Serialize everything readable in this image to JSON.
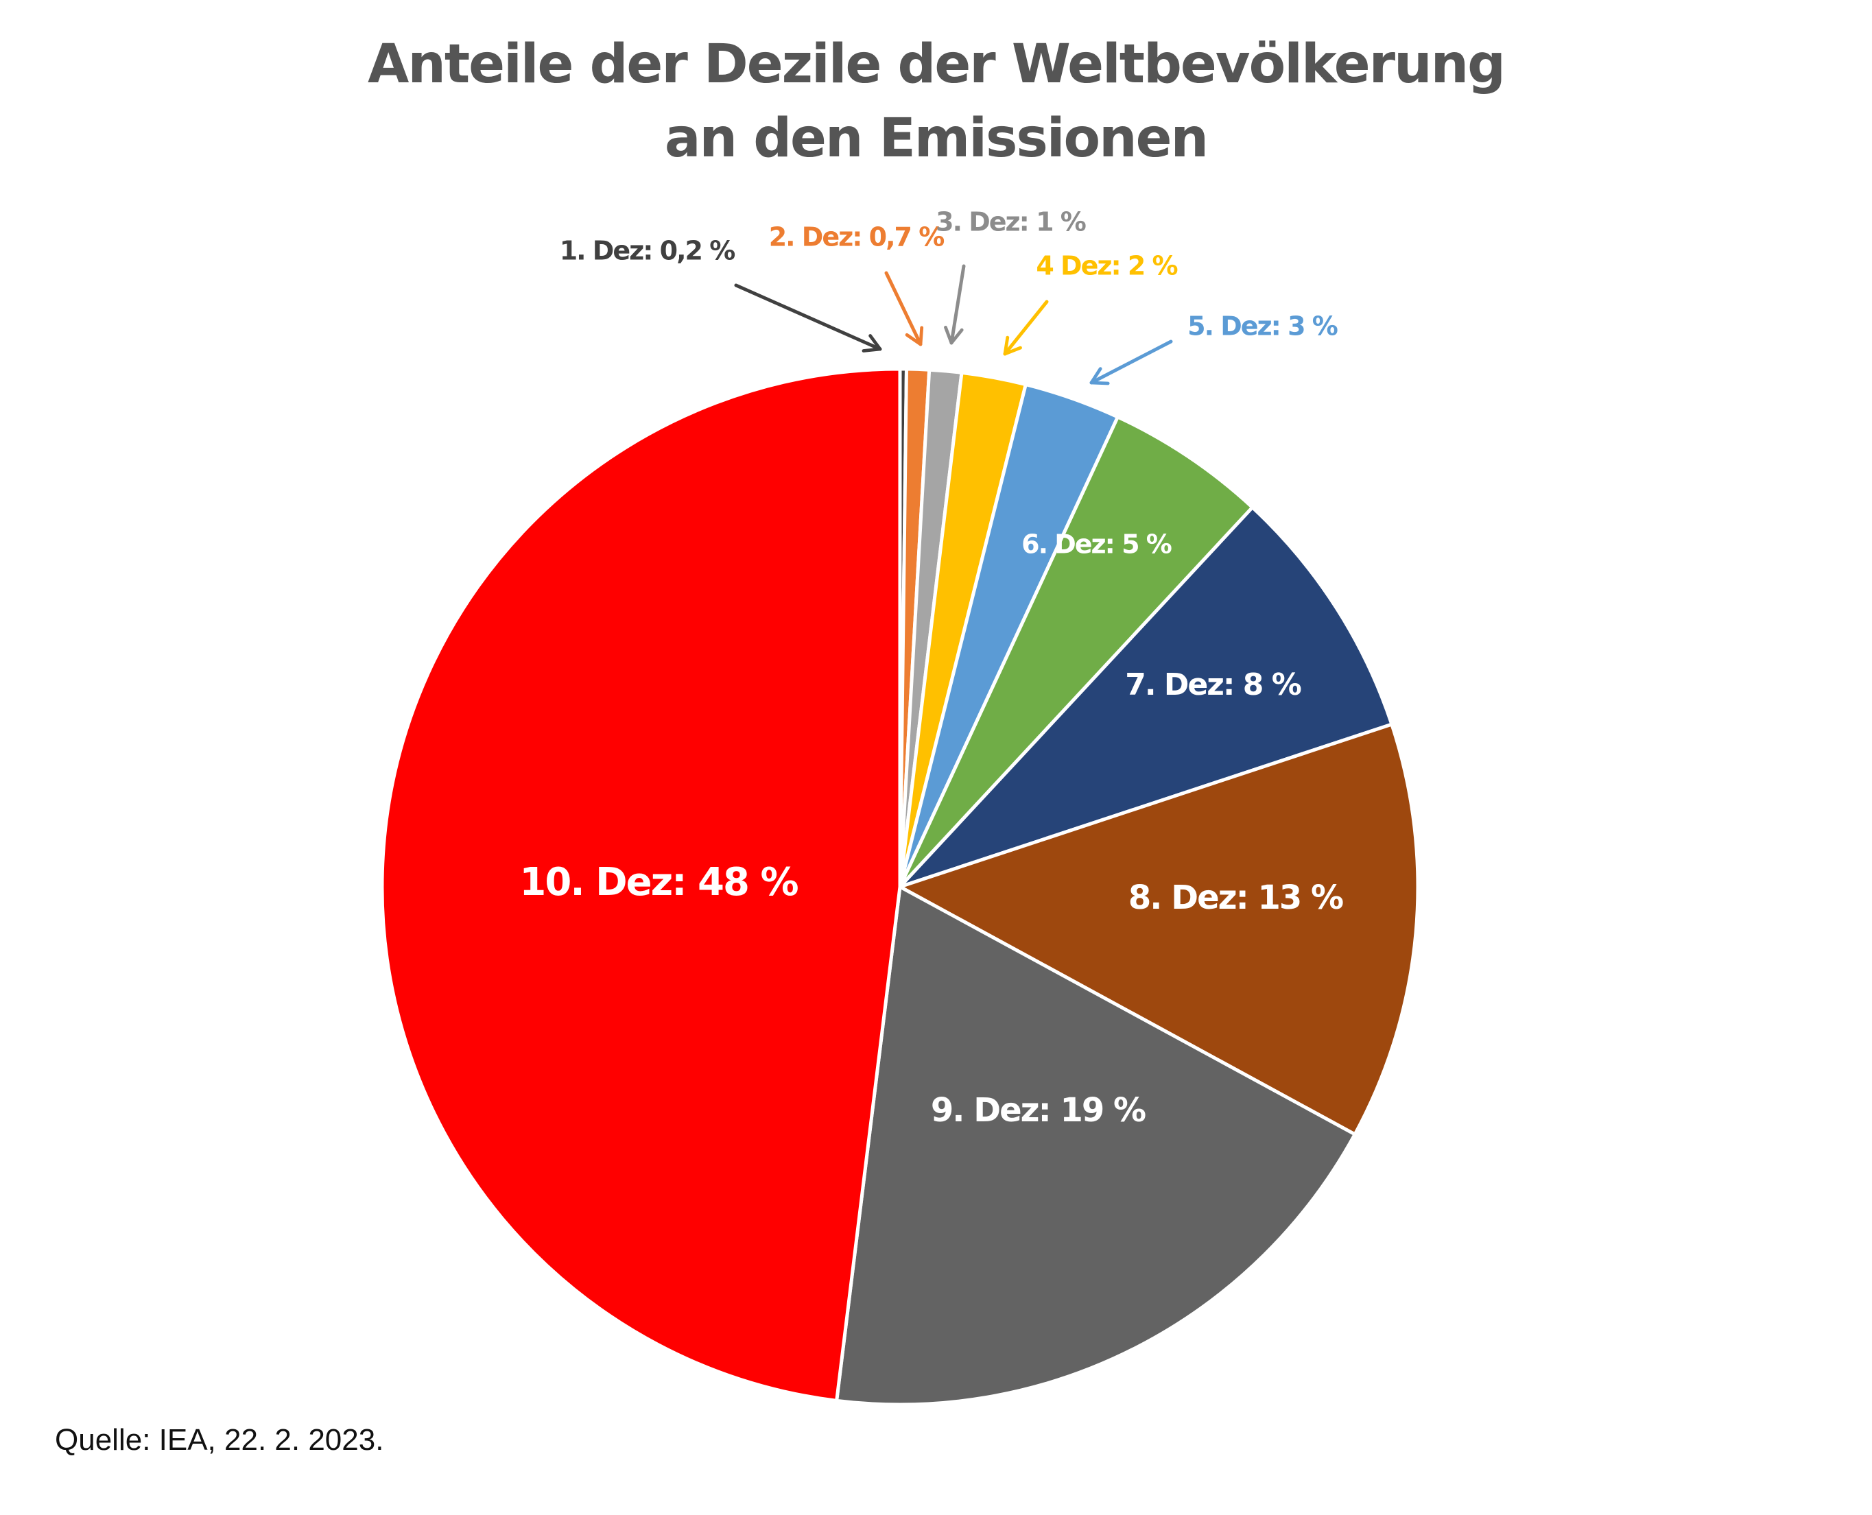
{
  "chart_data": {
    "type": "pie",
    "title_lines": [
      "Anteile der Dezile der Weltbevölkerung",
      "an den Emissionen"
    ],
    "start_angle_deg": 0,
    "direction": "clockwise",
    "slices": [
      {
        "label": "1. Dez: 0,2 %",
        "value": 0.2,
        "color": "#404040",
        "label_color": "#404040"
      },
      {
        "label": "2. Dez: 0,7 %",
        "value": 0.7,
        "color": "#ED7D31",
        "label_color": "#ED7D31"
      },
      {
        "label": "3. Dez: 1 %",
        "value": 1,
        "color": "#A5A5A5",
        "label_color": "#8C8C8C"
      },
      {
        "label": "4 Dez: 2 %",
        "value": 2,
        "color": "#FFC000",
        "label_color": "#FFC000"
      },
      {
        "label": "5. Dez: 3 %",
        "value": 3,
        "color": "#5B9BD5",
        "label_color": "#5B9BD5"
      },
      {
        "label": "6. Dez: 5 %",
        "value": 5,
        "color": "#70AD47",
        "label_color": "#FFFFFF"
      },
      {
        "label": "7. Dez: 8 %",
        "value": 8,
        "color": "#264478",
        "label_color": "#FFFFFF"
      },
      {
        "label": "8. Dez: 13 %",
        "value": 13,
        "color": "#9E480E",
        "label_color": "#FFFFFF"
      },
      {
        "label": "9. Dez: 19 %",
        "value": 19,
        "color": "#636363",
        "label_color": "#FFFFFF"
      },
      {
        "label": "10. Dez: 48 %",
        "value": 48,
        "color": "#FF0000",
        "label_color": "#FFFFFF"
      }
    ]
  },
  "source": "Quelle: IEA, 22. 2. 2023."
}
